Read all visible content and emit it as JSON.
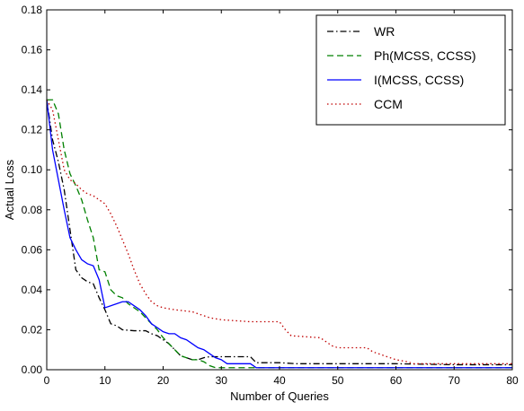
{
  "chart_data": {
    "type": "line",
    "title": "",
    "xlabel": "Number of Queries",
    "ylabel": "Actual Loss",
    "xlim": [
      0,
      80
    ],
    "ylim": [
      0,
      0.18
    ],
    "xticks": [
      0,
      10,
      20,
      30,
      40,
      50,
      60,
      70,
      80
    ],
    "xtick_labels": [
      "0",
      "10",
      "20",
      "30",
      "40",
      "50",
      "60",
      "70",
      "80"
    ],
    "yticks": [
      0,
      0.02,
      0.04,
      0.06,
      0.08,
      0.1,
      0.12,
      0.14,
      0.16,
      0.18
    ],
    "ytick_labels": [
      "0.00",
      "0.02",
      "0.04",
      "0.06",
      "0.08",
      "0.10",
      "0.12",
      "0.14",
      "0.16",
      "0.18"
    ],
    "grid": false,
    "legend_position": "top-right",
    "series": [
      {
        "name": "WR",
        "color": "#000000",
        "dash": "dashdot",
        "points": [
          [
            0,
            0.135
          ],
          [
            1,
            0.115
          ],
          [
            2,
            0.104
          ],
          [
            3,
            0.09
          ],
          [
            4,
            0.07
          ],
          [
            5,
            0.05
          ],
          [
            6,
            0.046
          ],
          [
            7,
            0.044
          ],
          [
            8,
            0.043
          ],
          [
            9,
            0.036
          ],
          [
            10,
            0.03
          ],
          [
            11,
            0.023
          ],
          [
            12,
            0.022
          ],
          [
            13,
            0.02
          ],
          [
            15,
            0.0195
          ],
          [
            17,
            0.0195
          ],
          [
            18,
            0.018
          ],
          [
            19,
            0.017
          ],
          [
            20,
            0.015
          ],
          [
            21,
            0.013
          ],
          [
            22,
            0.01
          ],
          [
            23,
            0.007
          ],
          [
            24,
            0.006
          ],
          [
            25,
            0.005
          ],
          [
            26,
            0.005
          ],
          [
            27,
            0.006
          ],
          [
            28,
            0.0065
          ],
          [
            30,
            0.0065
          ],
          [
            33,
            0.0065
          ],
          [
            35,
            0.0065
          ],
          [
            36,
            0.0035
          ],
          [
            40,
            0.0035
          ],
          [
            43,
            0.003
          ],
          [
            60,
            0.003
          ],
          [
            70,
            0.0025
          ],
          [
            80,
            0.0025
          ]
        ]
      },
      {
        "name": "Ph(MCSS, CCSS)",
        "color": "#008000",
        "dash": "dashed",
        "points": [
          [
            0,
            0.135
          ],
          [
            1,
            0.135
          ],
          [
            2,
            0.128
          ],
          [
            3,
            0.11
          ],
          [
            4,
            0.098
          ],
          [
            5,
            0.092
          ],
          [
            6,
            0.085
          ],
          [
            7,
            0.075
          ],
          [
            8,
            0.066
          ],
          [
            9,
            0.05
          ],
          [
            10,
            0.049
          ],
          [
            11,
            0.04
          ],
          [
            12,
            0.037
          ],
          [
            13,
            0.036
          ],
          [
            14,
            0.033
          ],
          [
            15,
            0.031
          ],
          [
            16,
            0.029
          ],
          [
            17,
            0.026
          ],
          [
            18,
            0.023
          ],
          [
            19,
            0.02
          ],
          [
            20,
            0.016
          ],
          [
            21,
            0.013
          ],
          [
            22,
            0.01
          ],
          [
            23,
            0.007
          ],
          [
            24,
            0.006
          ],
          [
            25,
            0.005
          ],
          [
            26,
            0.005
          ],
          [
            27,
            0.004
          ],
          [
            28,
            0.002
          ],
          [
            29,
            0.001
          ],
          [
            30,
            0.001
          ],
          [
            40,
            0.001
          ],
          [
            60,
            0.001
          ],
          [
            80,
            0.001
          ]
        ]
      },
      {
        "name": "I(MCSS, CCSS)",
        "color": "#0000ff",
        "dash": "solid",
        "points": [
          [
            0,
            0.135
          ],
          [
            1,
            0.11
          ],
          [
            2,
            0.095
          ],
          [
            3,
            0.08
          ],
          [
            4,
            0.066
          ],
          [
            5,
            0.06
          ],
          [
            6,
            0.055
          ],
          [
            7,
            0.053
          ],
          [
            8,
            0.052
          ],
          [
            9,
            0.045
          ],
          [
            10,
            0.031
          ],
          [
            11,
            0.032
          ],
          [
            12,
            0.033
          ],
          [
            13,
            0.034
          ],
          [
            14,
            0.034
          ],
          [
            15,
            0.032
          ],
          [
            16,
            0.03
          ],
          [
            17,
            0.027
          ],
          [
            18,
            0.023
          ],
          [
            19,
            0.021
          ],
          [
            20,
            0.019
          ],
          [
            21,
            0.018
          ],
          [
            22,
            0.018
          ],
          [
            23,
            0.016
          ],
          [
            24,
            0.015
          ],
          [
            25,
            0.013
          ],
          [
            26,
            0.011
          ],
          [
            27,
            0.01
          ],
          [
            28,
            0.008
          ],
          [
            29,
            0.006
          ],
          [
            30,
            0.005
          ],
          [
            31,
            0.003
          ],
          [
            35,
            0.003
          ],
          [
            36,
            0.001
          ],
          [
            40,
            0.001
          ],
          [
            60,
            0.001
          ],
          [
            80,
            0.001
          ]
        ]
      },
      {
        "name": "CCM",
        "color": "#c00000",
        "dash": "dotted",
        "points": [
          [
            0,
            0.135
          ],
          [
            1,
            0.13
          ],
          [
            2,
            0.115
          ],
          [
            3,
            0.1
          ],
          [
            4,
            0.095
          ],
          [
            5,
            0.093
          ],
          [
            6,
            0.09
          ],
          [
            7,
            0.088
          ],
          [
            8,
            0.087
          ],
          [
            9,
            0.085
          ],
          [
            10,
            0.083
          ],
          [
            11,
            0.078
          ],
          [
            12,
            0.072
          ],
          [
            13,
            0.065
          ],
          [
            14,
            0.058
          ],
          [
            15,
            0.05
          ],
          [
            16,
            0.043
          ],
          [
            17,
            0.038
          ],
          [
            18,
            0.034
          ],
          [
            19,
            0.032
          ],
          [
            20,
            0.031
          ],
          [
            22,
            0.03
          ],
          [
            25,
            0.029
          ],
          [
            26,
            0.028
          ],
          [
            28,
            0.026
          ],
          [
            30,
            0.025
          ],
          [
            35,
            0.024
          ],
          [
            40,
            0.024
          ],
          [
            41,
            0.02
          ],
          [
            42,
            0.017
          ],
          [
            47,
            0.016
          ],
          [
            48,
            0.014
          ],
          [
            49,
            0.012
          ],
          [
            50,
            0.011
          ],
          [
            55,
            0.011
          ],
          [
            56,
            0.009
          ],
          [
            58,
            0.007
          ],
          [
            60,
            0.005
          ],
          [
            62,
            0.004
          ],
          [
            63,
            0.003
          ],
          [
            80,
            0.003
          ]
        ]
      }
    ]
  }
}
